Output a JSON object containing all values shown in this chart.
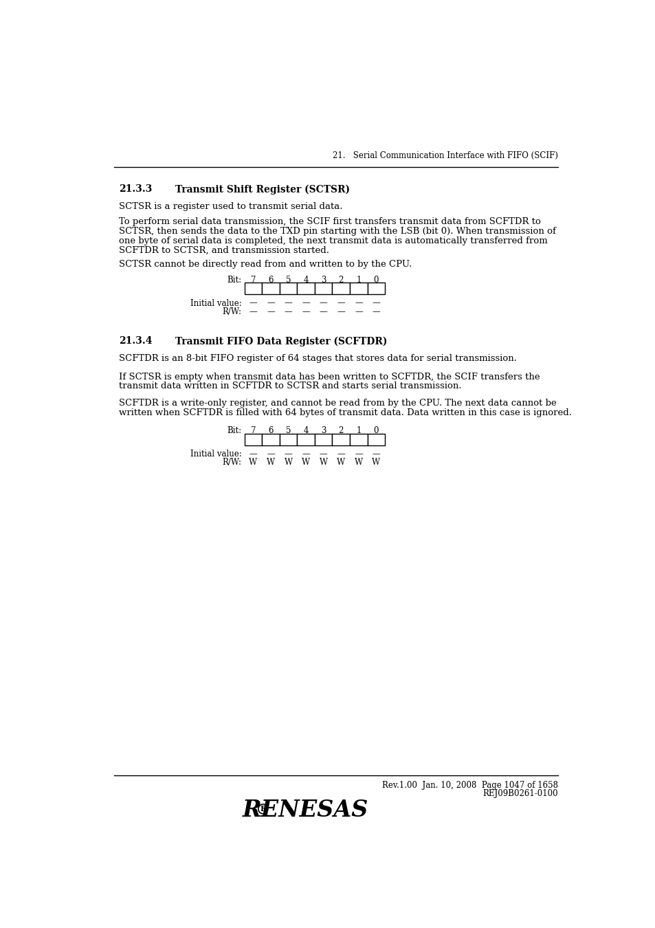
{
  "page_header": "21.   Serial Communication Interface with FIFO (SCIF)",
  "section1_num": "21.3.3",
  "section1_title": "Transmit Shift Register (SCTSR)",
  "section1_para1": "SCTSR is a register used to transmit serial data.",
  "section1_para2_lines": [
    "To perform serial data transmission, the SCIF first transfers transmit data from SCFTDR to",
    "SCTSR, then sends the data to the TXD pin starting with the LSB (bit 0). When transmission of",
    "one byte of serial data is completed, the next transmit data is automatically transferred from",
    "SCFTDR to SCTSR, and transmission started."
  ],
  "section1_para3": "SCTSR cannot be directly read from and written to by the CPU.",
  "reg1_bit_label": "Bit:",
  "reg1_bits": [
    "7",
    "6",
    "5",
    "4",
    "3",
    "2",
    "1",
    "0"
  ],
  "reg1_initial_label": "Initial value:",
  "reg1_initial_values": [
    "—",
    "—",
    "—",
    "—",
    "—",
    "—",
    "—",
    "—"
  ],
  "reg1_rw_label": "R/W:",
  "reg1_rw_values": [
    "—",
    "—",
    "—",
    "—",
    "—",
    "—",
    "—",
    "—"
  ],
  "section2_num": "21.3.4",
  "section2_title": "Transmit FIFO Data Register (SCFTDR)",
  "section2_para1": "SCFTDR is an 8-bit FIFO register of 64 stages that stores data for serial transmission.",
  "section2_para2_lines": [
    "If SCTSR is empty when transmit data has been written to SCFTDR, the SCIF transfers the",
    "transmit data written in SCFTDR to SCTSR and starts serial transmission."
  ],
  "section2_para3_lines": [
    "SCFTDR is a write-only register, and cannot be read from by the CPU. The next data cannot be",
    "written when SCFTDR is filled with 64 bytes of transmit data. Data written in this case is ignored."
  ],
  "reg2_bit_label": "Bit:",
  "reg2_bits": [
    "7",
    "6",
    "5",
    "4",
    "3",
    "2",
    "1",
    "0"
  ],
  "reg2_initial_label": "Initial value:",
  "reg2_initial_values": [
    "—",
    "—",
    "—",
    "—",
    "—",
    "—",
    "—",
    "—"
  ],
  "reg2_rw_label": "R/W:",
  "reg2_rw_values": [
    "W",
    "W",
    "W",
    "W",
    "W",
    "W",
    "W",
    "W"
  ],
  "footer_text1": "Rev.1.00  Jan. 10, 2008  Page 1047 of 1658",
  "footer_text2": "REJ09B0261-0100",
  "renesas_logo": "RENESAS",
  "bg_color": "#ffffff",
  "text_color": "#000000",
  "box_color": "#000000"
}
